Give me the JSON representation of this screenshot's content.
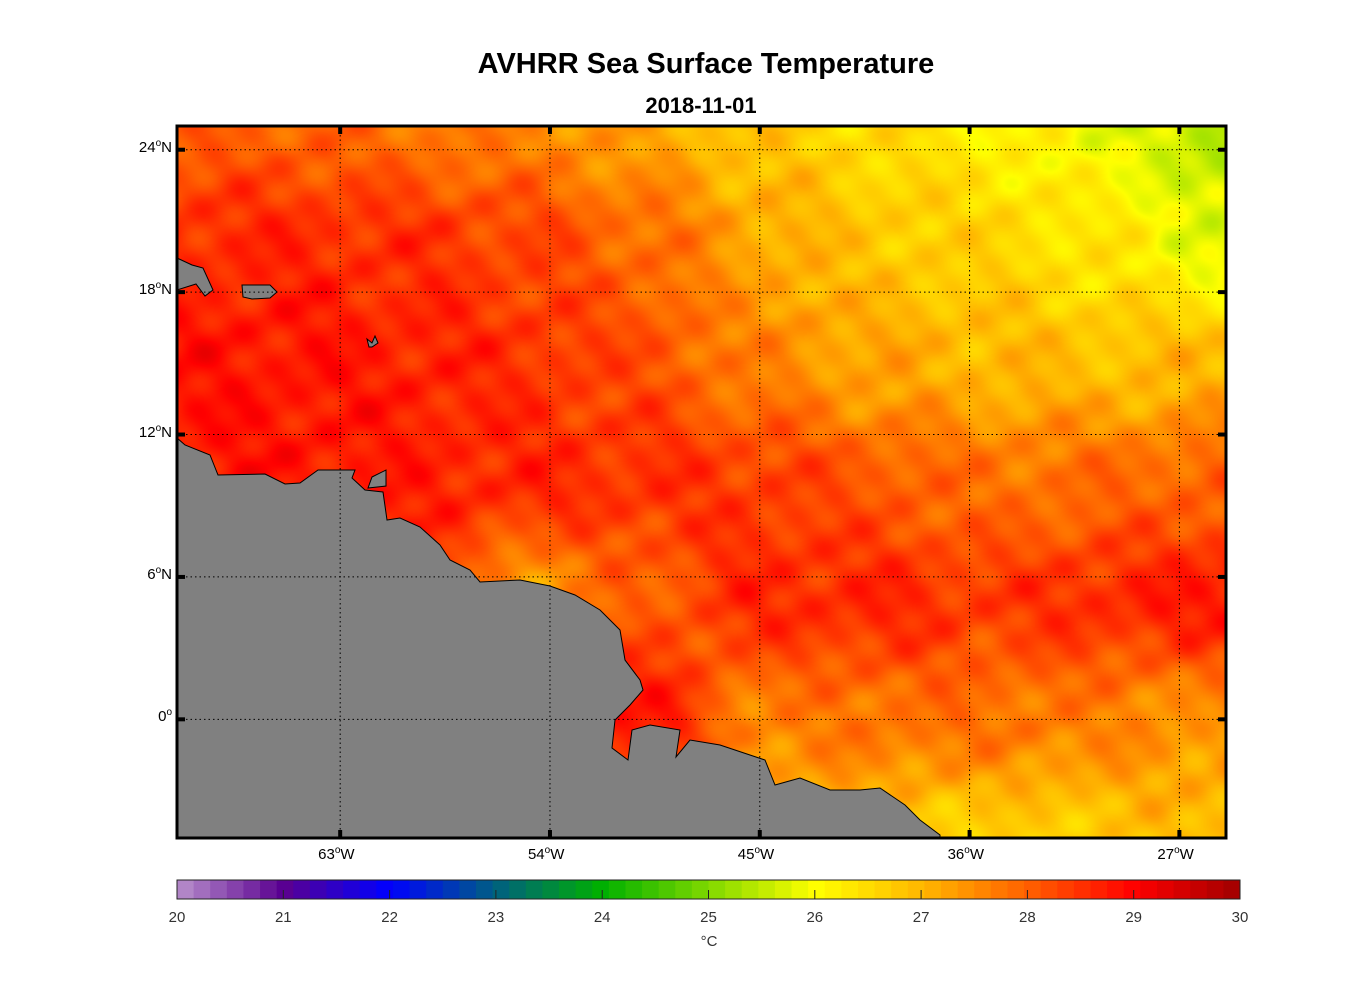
{
  "chart_data": {
    "type": "heatmap",
    "title": "AVHRR Sea Surface Temperature",
    "subtitle": "2018-11-01",
    "projection": "lon-lat map",
    "lon_range": [
      -70,
      -25
    ],
    "lat_range": [
      -5,
      25
    ],
    "x_ticks": [
      {
        "value": -63,
        "deg": "63",
        "hemi": "W"
      },
      {
        "value": -54,
        "deg": "54",
        "hemi": "W"
      },
      {
        "value": -45,
        "deg": "45",
        "hemi": "W"
      },
      {
        "value": -36,
        "deg": "36",
        "hemi": "W"
      },
      {
        "value": -27,
        "deg": "27",
        "hemi": "W"
      }
    ],
    "y_ticks": [
      {
        "value": 24,
        "deg": "24",
        "hemi": "N"
      },
      {
        "value": 18,
        "deg": "18",
        "hemi": "N"
      },
      {
        "value": 12,
        "deg": "12",
        "hemi": "N"
      },
      {
        "value": 6,
        "deg": "6",
        "hemi": "N"
      },
      {
        "value": 0,
        "deg": "0",
        "hemi": ""
      }
    ],
    "grid": true,
    "grid_lon": [
      -70,
      -65,
      -60,
      -55,
      -50,
      -45,
      -40,
      -35,
      -30,
      -25
    ],
    "grid_lat": [
      25,
      20,
      15,
      10,
      5,
      0,
      -5
    ],
    "sst_values": [
      [
        28.0,
        28.0,
        27.8,
        27.6,
        27.2,
        26.8,
        26.5,
        26.2,
        25.9,
        25.3
      ],
      [
        28.6,
        28.6,
        28.5,
        28.3,
        27.9,
        27.2,
        26.8,
        26.6,
        26.3,
        25.8
      ],
      [
        28.8,
        28.8,
        28.7,
        28.5,
        28.2,
        27.6,
        27.2,
        27.0,
        26.9,
        27.0
      ],
      [
        28.8,
        28.8,
        28.7,
        28.6,
        28.5,
        28.4,
        28.1,
        27.8,
        27.9,
        28.0
      ],
      [
        28.6,
        28.6,
        28.4,
        27.3,
        28.0,
        28.6,
        28.6,
        28.4,
        28.6,
        28.8
      ],
      [
        28.6,
        28.6,
        28.6,
        28.6,
        28.8,
        27.6,
        27.8,
        27.8,
        27.6,
        27.4
      ],
      [
        28.0,
        28.0,
        28.0,
        28.0,
        28.0,
        27.0,
        26.8,
        26.6,
        26.8,
        27.0
      ]
    ],
    "colorbar": {
      "range": [
        20,
        30
      ],
      "ticks": [
        "20",
        "21",
        "22",
        "23",
        "24",
        "25",
        "26",
        "27",
        "28",
        "29",
        "30"
      ],
      "label": "°C",
      "colors": {
        "20": "#b890cc",
        "21": "#5a0090",
        "22": "#0000ff",
        "23": "#006080",
        "24": "#00b000",
        "25": "#80d800",
        "26": "#ffff00",
        "27": "#ffb800",
        "28": "#ff6000",
        "29": "#ff0000",
        "30": "#a00000"
      }
    },
    "land_color": "#808080"
  }
}
